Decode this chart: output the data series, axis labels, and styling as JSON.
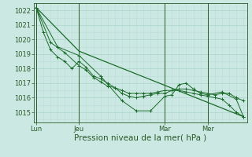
{
  "bg_color": "#cce8e2",
  "grid_color_major": "#aad4cc",
  "grid_color_minor": "#bdddd8",
  "line_color": "#1a6b2a",
  "axis_color": "#2a5a2a",
  "xlabel": "Pression niveau de la mer( hPa )",
  "xlabel_fontsize": 7.5,
  "ytick_fontsize": 6,
  "xtick_fontsize": 6,
  "yticks": [
    1015,
    1016,
    1017,
    1018,
    1019,
    1020,
    1021,
    1022
  ],
  "ylim": [
    1014.3,
    1022.5
  ],
  "xtick_labels": [
    "Lun",
    "Jeu",
    "Mar",
    "Mer"
  ],
  "xtick_pos": [
    0,
    6,
    18,
    24
  ],
  "xlim": [
    -0.3,
    29.5
  ],
  "vlines": [
    0,
    6,
    18,
    24
  ],
  "series": [
    [
      0,
      1022.2,
      1,
      1020.5,
      2,
      1019.3,
      3,
      1018.8,
      4,
      1018.5,
      5,
      1018.0,
      6,
      1018.5,
      7,
      1018.1,
      8,
      1017.5,
      9,
      1017.3,
      10,
      1017.0,
      11,
      1016.7,
      12,
      1016.3,
      13,
      1016.1,
      14,
      1016.0,
      15,
      1016.1,
      16,
      1016.2,
      17,
      1016.3,
      18,
      1016.3,
      19,
      1016.5,
      20,
      1016.5,
      21,
      1016.4,
      22,
      1016.3,
      23,
      1016.2,
      24,
      1016.1,
      25,
      1016.0,
      26,
      1015.9,
      27,
      1015.5,
      28,
      1015.0,
      29,
      1014.7
    ],
    [
      0,
      1022.2,
      3,
      1019.5,
      6,
      1018.9,
      9,
      1017.5,
      12,
      1015.8,
      14,
      1015.1,
      16,
      1015.1,
      18,
      1016.1,
      19,
      1016.2,
      20,
      1016.9,
      21,
      1017.0,
      22,
      1016.6,
      23,
      1016.3,
      24,
      1016.2,
      26,
      1016.4,
      28,
      1015.9,
      29,
      1014.7
    ],
    [
      0,
      1022.2,
      2,
      1019.8,
      4,
      1019.1,
      6,
      1018.2,
      7,
      1017.9,
      8,
      1017.4,
      9,
      1017.1,
      10,
      1016.8,
      11,
      1016.7,
      12,
      1016.5,
      13,
      1016.3,
      14,
      1016.3,
      15,
      1016.3,
      16,
      1016.3,
      17,
      1016.4,
      18,
      1016.5,
      19,
      1016.5,
      20,
      1016.6,
      21,
      1016.6,
      22,
      1016.5,
      23,
      1016.4,
      24,
      1016.3,
      25,
      1016.2,
      26,
      1016.3,
      27,
      1016.3,
      28,
      1016.0,
      29,
      1015.8
    ],
    [
      0,
      1022.2,
      6,
      1019.2,
      29,
      1014.7
    ]
  ]
}
